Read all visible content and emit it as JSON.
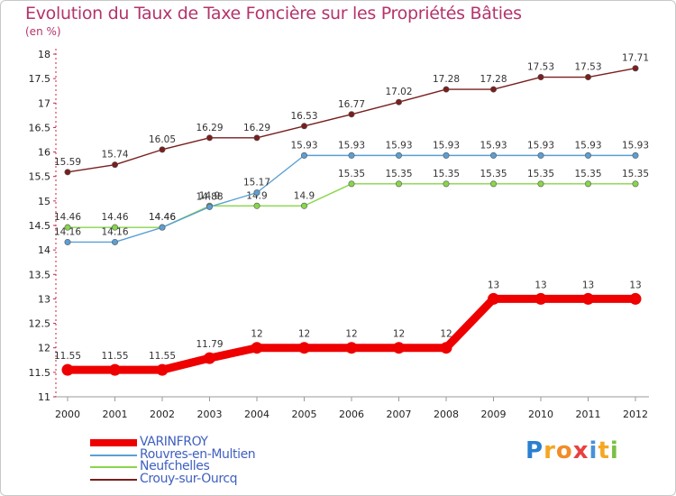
{
  "chart_data": {
    "type": "line",
    "title": "Evolution du Taux de Taxe Foncière sur les Propriétés Bâties",
    "unit_label": "(en %)",
    "xlabel": "",
    "ylabel": "",
    "x": [
      "2000",
      "2001",
      "2002",
      "2003",
      "2004",
      "2005",
      "2006",
      "2007",
      "2008",
      "2009",
      "2010",
      "2011",
      "2012"
    ],
    "ylim": [
      11,
      18
    ],
    "yticks": [
      "11",
      "11.5",
      "12",
      "12.5",
      "13",
      "13.5",
      "14",
      "14.5",
      "15",
      "15.5",
      "16",
      "16.5",
      "17",
      "17.5",
      "18"
    ],
    "grid": false,
    "legend_position": "bottom-left",
    "series": [
      {
        "name": "VARINFROY",
        "color": "#ee0000",
        "values": [
          11.55,
          11.55,
          11.55,
          11.79,
          12,
          12,
          12,
          12,
          12,
          13,
          13,
          13,
          13
        ],
        "labels": [
          "11.55",
          "11.55",
          "11.55",
          "11.79",
          "12",
          "12",
          "12",
          "12",
          "12",
          "13",
          "13",
          "13",
          "13"
        ]
      },
      {
        "name": "Rouvres-en-Multien",
        "color": "#5a9fd4",
        "values": [
          14.16,
          14.16,
          14.46,
          14.88,
          15.17,
          15.93,
          15.93,
          15.93,
          15.93,
          15.93,
          15.93,
          15.93,
          15.93
        ],
        "labels": [
          "14.16",
          "14.16",
          "14.46",
          "14.88",
          "15.17",
          "15.93",
          "15.93",
          "15.93",
          "15.93",
          "15.93",
          "15.93",
          "15.93",
          "15.93"
        ]
      },
      {
        "name": "Neufchelles",
        "color": "#88d64a",
        "values": [
          14.46,
          14.46,
          14.46,
          14.9,
          14.9,
          14.9,
          15.35,
          15.35,
          15.35,
          15.35,
          15.35,
          15.35,
          15.35
        ],
        "labels": [
          "14.46",
          "14.46",
          "14.46",
          "14.9",
          "14.9",
          "14.9",
          "15.35",
          "15.35",
          "15.35",
          "15.35",
          "15.35",
          "15.35",
          "15.35"
        ]
      },
      {
        "name": "Crouy-sur-Ourcq",
        "color": "#7a1e1e",
        "values": [
          15.59,
          15.74,
          16.05,
          16.29,
          16.29,
          16.53,
          16.77,
          17.02,
          17.28,
          17.28,
          17.53,
          17.53,
          17.71
        ],
        "labels": [
          "15.59",
          "15.74",
          "16.05",
          "16.29",
          "16.29",
          "16.53",
          "16.77",
          "17.02",
          "17.28",
          "17.28",
          "17.53",
          "17.53",
          "17.71"
        ]
      }
    ]
  },
  "logo": {
    "letters": [
      "P",
      "r",
      "o",
      "x",
      "i",
      "t",
      "i"
    ],
    "colors": [
      "#2a7fd0",
      "#f5a623",
      "#f28c28",
      "#e94040",
      "#4a90d9",
      "#f5a623",
      "#7ac143"
    ]
  }
}
